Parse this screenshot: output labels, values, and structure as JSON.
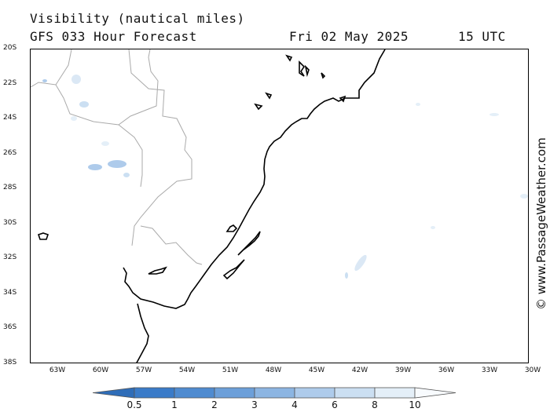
{
  "header": {
    "title": "Visibility (nautical miles)",
    "model": "GFS 033 Hour Forecast",
    "date": "Fri 02 May 2025",
    "time": "15 UTC"
  },
  "axes": {
    "latitudes": [
      "20S",
      "22S",
      "24S",
      "26S",
      "28S",
      "30S",
      "32S",
      "34S",
      "36S",
      "38S"
    ],
    "longitudes": [
      "63W",
      "60W",
      "57W",
      "54W",
      "51W",
      "48W",
      "45W",
      "42W",
      "39W",
      "36W",
      "33W",
      "30W"
    ]
  },
  "credit": "© www.PassageWeather.com",
  "legend": {
    "values": [
      "0.5",
      "1",
      "2",
      "3",
      "4",
      "6",
      "8",
      "10"
    ],
    "colors": [
      "#3a7bc8",
      "#4f8bd0",
      "#6c9fd9",
      "#8cb5e2",
      "#aecbeb",
      "#cbdff2",
      "#e4eff8",
      "#f8fbfe"
    ]
  }
}
